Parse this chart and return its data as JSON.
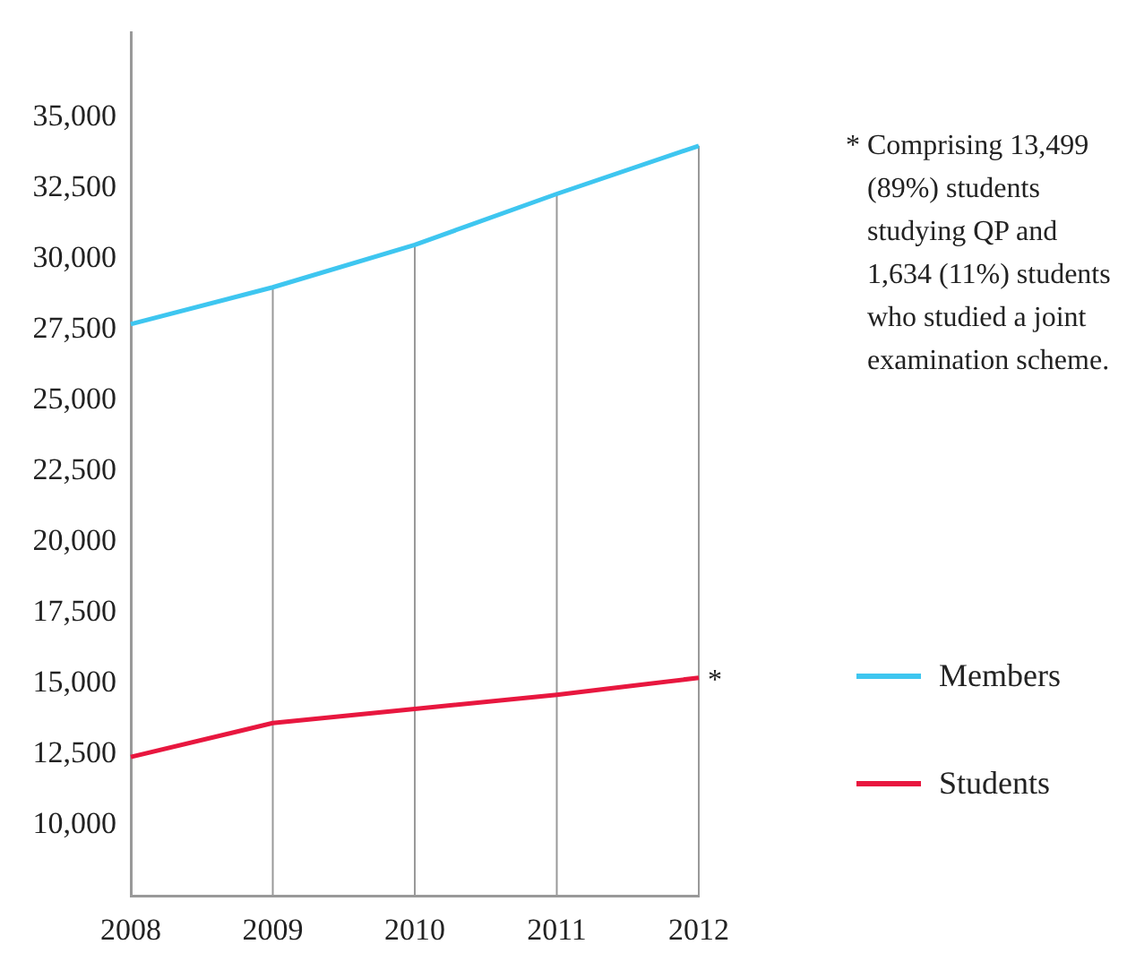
{
  "chart_data": {
    "type": "line",
    "categories": [
      "2008",
      "2009",
      "2010",
      "2011",
      "2012"
    ],
    "series": [
      {
        "name": "Members",
        "color": "#3ec6f0",
        "values": [
          27700,
          29000,
          30500,
          32300,
          34000
        ]
      },
      {
        "name": "Students",
        "color": "#e8173f",
        "values": [
          12400,
          13600,
          14100,
          14600,
          15200
        ]
      }
    ],
    "ylim": [
      7500,
      38000
    ],
    "yticks": [
      {
        "value": 10000,
        "label": "10,000"
      },
      {
        "value": 12500,
        "label": "12,500"
      },
      {
        "value": 15000,
        "label": "15,000"
      },
      {
        "value": 17500,
        "label": "17,500"
      },
      {
        "value": 20000,
        "label": "20,000"
      },
      {
        "value": 22500,
        "label": "22,500"
      },
      {
        "value": 25000,
        "label": "25,000"
      },
      {
        "value": 27500,
        "label": "27,500"
      },
      {
        "value": 30000,
        "label": "30,000"
      },
      {
        "value": 32500,
        "label": "32,500"
      },
      {
        "value": 35000,
        "label": "35,000"
      }
    ],
    "grid": "x",
    "legend": "right",
    "marker": "none",
    "annotations": [
      {
        "text": "*",
        "x": "2012",
        "y": 15200
      },
      "* Comprising 13,499 (89%) students studying QP and 1,634 (11%) students who studied a joint examination scheme."
    ]
  }
}
